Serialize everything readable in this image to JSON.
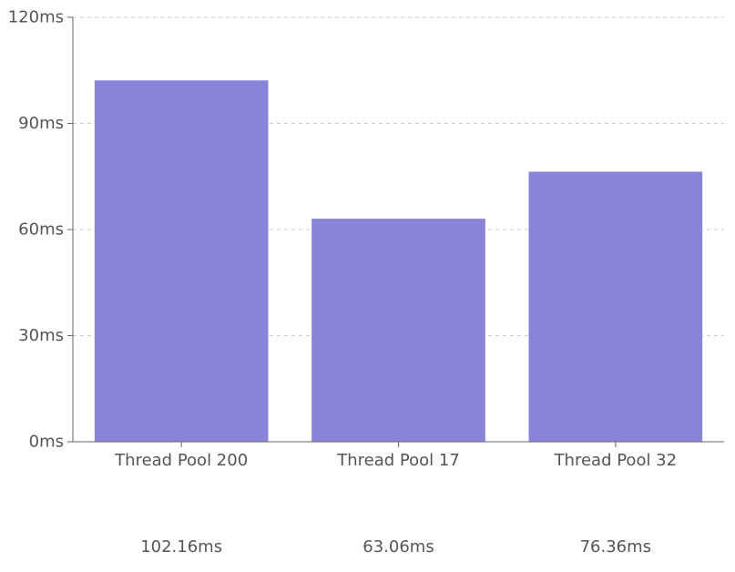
{
  "chart_data": {
    "type": "bar",
    "categories": [
      "Thread Pool 200",
      "Thread Pool 17",
      "Thread Pool 32"
    ],
    "values": [
      102.16,
      63.06,
      76.36
    ],
    "value_labels": [
      "102.16ms",
      "63.06ms",
      "76.36ms"
    ],
    "y_ticks": [
      0,
      30,
      60,
      90,
      120
    ],
    "y_tick_labels": [
      "0ms",
      "30ms",
      "60ms",
      "90ms",
      "120ms"
    ],
    "ylim": [
      0,
      120
    ],
    "grid": true,
    "grid_style": "dashed horizontal",
    "title": "",
    "xlabel": "",
    "ylabel": ""
  },
  "colors": {
    "bar": "#8884d8",
    "axis": "#666666",
    "grid": "#cccccc",
    "text": "#555555"
  }
}
